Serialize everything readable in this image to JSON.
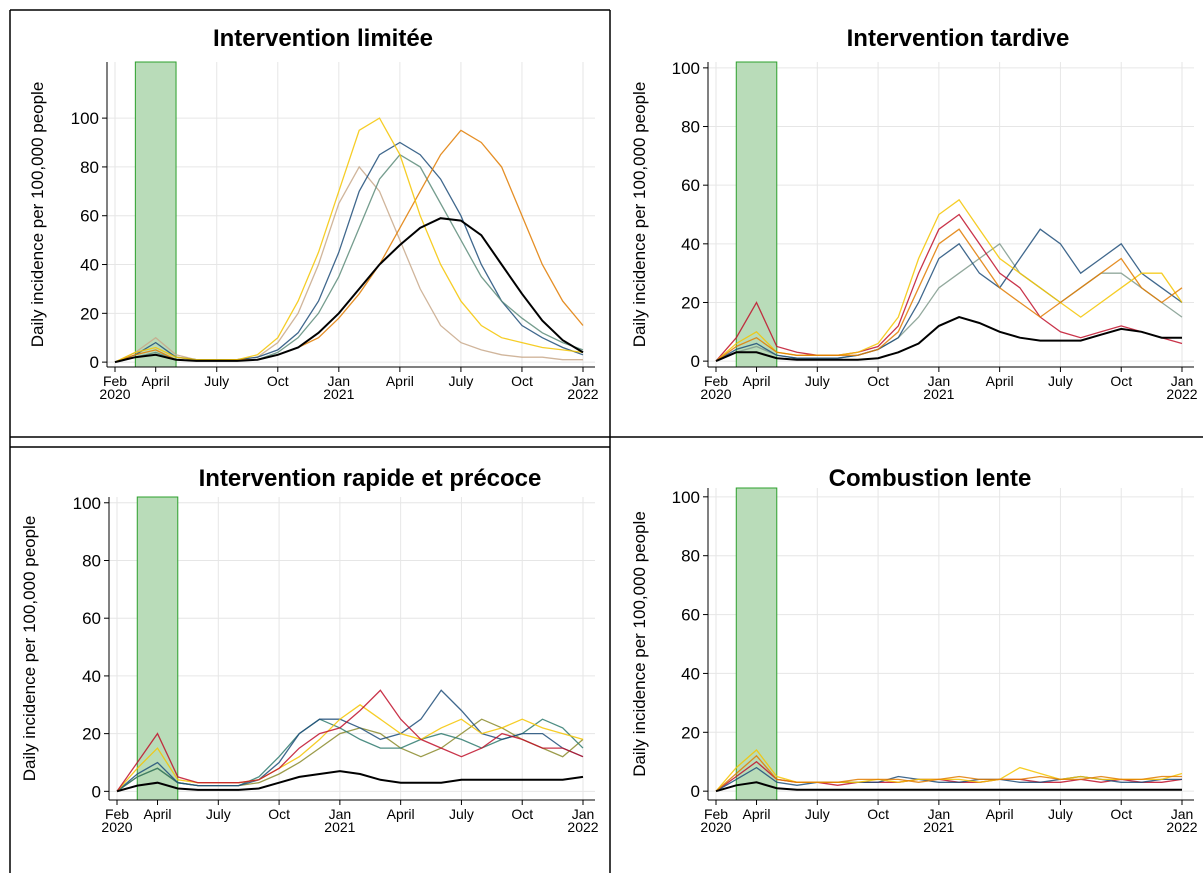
{
  "chart_data": [
    {
      "type": "line",
      "title": "Intervention limitée",
      "y_label": "Daily incidence per 100,000 people",
      "x": [
        "2020-02",
        "2020-03",
        "2020-04",
        "2020-05",
        "2020-06",
        "2020-07",
        "2020-08",
        "2020-09",
        "2020-10",
        "2020-11",
        "2020-12",
        "2021-01",
        "2021-02",
        "2021-03",
        "2021-04",
        "2021-05",
        "2021-06",
        "2021-07",
        "2021-08",
        "2021-09",
        "2021-10",
        "2021-11",
        "2021-12",
        "2022-01"
      ],
      "xlim": [
        "2020-02",
        "2022-01"
      ],
      "xticks": [
        {
          "value": "2020-02",
          "label": "Feb\n2020"
        },
        {
          "value": "2020-04",
          "label": "April"
        },
        {
          "value": "2020-07",
          "label": "July"
        },
        {
          "value": "2020-10",
          "label": "Oct"
        },
        {
          "value": "2021-01",
          "label": "Jan\n2021"
        },
        {
          "value": "2021-04",
          "label": "April"
        },
        {
          "value": "2021-07",
          "label": "July"
        },
        {
          "value": "2021-10",
          "label": "Oct"
        },
        {
          "value": "2022-01",
          "label": "Jan\n2022"
        }
      ],
      "ylim": [
        -2,
        123
      ],
      "yticks": [
        0,
        20,
        40,
        60,
        80,
        100
      ],
      "grid": true,
      "highlight_x": [
        "2020-03",
        "2020-05"
      ],
      "highlight_color": "#b9dcb9",
      "series": [
        {
          "color": "#c8a88a",
          "values": [
            0,
            4,
            10,
            3,
            1,
            1,
            1,
            2,
            8,
            20,
            40,
            65,
            80,
            70,
            50,
            30,
            15,
            8,
            5,
            3,
            2,
            2,
            1,
            1
          ]
        },
        {
          "color": "#1f4e79",
          "values": [
            0,
            3,
            8,
            2,
            1,
            1,
            1,
            2,
            5,
            12,
            25,
            45,
            70,
            85,
            90,
            85,
            75,
            60,
            40,
            25,
            15,
            10,
            6,
            3
          ]
        },
        {
          "color": "#5d8c7a",
          "values": [
            0,
            2,
            4,
            1,
            0.5,
            0.5,
            1,
            1,
            4,
            10,
            20,
            35,
            55,
            75,
            85,
            80,
            65,
            50,
            35,
            25,
            18,
            12,
            8,
            5
          ]
        },
        {
          "color": "#e07b00",
          "values": [
            0,
            3,
            5,
            1,
            0.5,
            0.5,
            1,
            1,
            3,
            6,
            10,
            18,
            28,
            40,
            55,
            70,
            85,
            95,
            90,
            80,
            60,
            40,
            25,
            15
          ]
        },
        {
          "color": "#f5c400",
          "values": [
            0,
            4,
            6,
            2,
            1,
            1,
            1,
            3,
            10,
            25,
            45,
            70,
            95,
            100,
            85,
            60,
            40,
            25,
            15,
            10,
            8,
            6,
            5,
            4
          ]
        },
        {
          "color": "#000000",
          "values": [
            0,
            2,
            3,
            1,
            0.5,
            0.5,
            0.5,
            1,
            3,
            6,
            12,
            20,
            30,
            40,
            48,
            55,
            59,
            58,
            52,
            40,
            28,
            17,
            9,
            4
          ]
        }
      ]
    },
    {
      "type": "line",
      "title": "Intervention tardive",
      "y_label": "Daily incidence per 100,000 people",
      "x": [
        "2020-02",
        "2020-03",
        "2020-04",
        "2020-05",
        "2020-06",
        "2020-07",
        "2020-08",
        "2020-09",
        "2020-10",
        "2020-11",
        "2020-12",
        "2021-01",
        "2021-02",
        "2021-03",
        "2021-04",
        "2021-05",
        "2021-06",
        "2021-07",
        "2021-08",
        "2021-09",
        "2021-10",
        "2021-11",
        "2021-12",
        "2022-01"
      ],
      "xlim": [
        "2020-02",
        "2022-01"
      ],
      "xticks": [
        {
          "value": "2020-02",
          "label": "Feb\n2020"
        },
        {
          "value": "2020-04",
          "label": "April"
        },
        {
          "value": "2020-07",
          "label": "July"
        },
        {
          "value": "2020-10",
          "label": "Oct"
        },
        {
          "value": "2021-01",
          "label": "Jan\n2021"
        },
        {
          "value": "2021-04",
          "label": "April"
        },
        {
          "value": "2021-07",
          "label": "July"
        },
        {
          "value": "2021-10",
          "label": "Oct"
        },
        {
          "value": "2022-01",
          "label": "Jan\n2022"
        }
      ],
      "ylim": [
        -2,
        102
      ],
      "yticks": [
        0,
        20,
        40,
        60,
        80,
        100
      ],
      "grid": true,
      "highlight_x": [
        "2020-03",
        "2020-05"
      ],
      "highlight_color": "#b9dcb9",
      "series": [
        {
          "color": "#7f9a8c",
          "values": [
            0,
            3,
            5,
            2,
            1,
            1,
            1,
            2,
            4,
            8,
            15,
            25,
            30,
            35,
            40,
            30,
            25,
            20,
            25,
            30,
            30,
            25,
            20,
            15
          ]
        },
        {
          "color": "#1f4e79",
          "values": [
            0,
            4,
            6,
            2,
            1,
            1,
            1,
            2,
            4,
            8,
            20,
            35,
            40,
            30,
            25,
            35,
            45,
            40,
            30,
            35,
            40,
            30,
            25,
            20
          ]
        },
        {
          "color": "#c0102a",
          "values": [
            0,
            8,
            20,
            5,
            3,
            2,
            2,
            3,
            5,
            12,
            30,
            45,
            50,
            40,
            30,
            25,
            15,
            10,
            8,
            10,
            12,
            10,
            8,
            6
          ]
        },
        {
          "color": "#f5c400",
          "values": [
            0,
            6,
            10,
            3,
            2,
            2,
            2,
            3,
            6,
            15,
            35,
            50,
            55,
            45,
            35,
            30,
            25,
            20,
            15,
            20,
            25,
            30,
            30,
            20
          ]
        },
        {
          "color": "#e07b00",
          "values": [
            0,
            5,
            8,
            3,
            2,
            2,
            2,
            2,
            4,
            10,
            25,
            40,
            45,
            35,
            25,
            20,
            15,
            20,
            25,
            30,
            35,
            25,
            20,
            25
          ]
        },
        {
          "color": "#000000",
          "values": [
            0,
            3,
            3,
            1,
            0.5,
            0.5,
            0.5,
            0.5,
            1,
            3,
            6,
            12,
            15,
            13,
            10,
            8,
            7,
            7,
            7,
            9,
            11,
            10,
            8,
            8
          ]
        }
      ]
    },
    {
      "type": "line",
      "title": "Intervention rapide et précoce",
      "y_label": "Daily incidence per 100,000 people",
      "x": [
        "2020-02",
        "2020-03",
        "2020-04",
        "2020-05",
        "2020-06",
        "2020-07",
        "2020-08",
        "2020-09",
        "2020-10",
        "2020-11",
        "2020-12",
        "2021-01",
        "2021-02",
        "2021-03",
        "2021-04",
        "2021-05",
        "2021-06",
        "2021-07",
        "2021-08",
        "2021-09",
        "2021-10",
        "2021-11",
        "2021-12",
        "2022-01"
      ],
      "xlim": [
        "2020-02",
        "2022-01"
      ],
      "xticks": [
        {
          "value": "2020-02",
          "label": "Feb\n2020"
        },
        {
          "value": "2020-04",
          "label": "April"
        },
        {
          "value": "2020-07",
          "label": "July"
        },
        {
          "value": "2020-10",
          "label": "Oct"
        },
        {
          "value": "2021-01",
          "label": "Jan\n2021"
        },
        {
          "value": "2021-04",
          "label": "April"
        },
        {
          "value": "2021-07",
          "label": "July"
        },
        {
          "value": "2021-10",
          "label": "Oct"
        },
        {
          "value": "2022-01",
          "label": "Jan\n2022"
        }
      ],
      "ylim": [
        -3,
        102
      ],
      "yticks": [
        0,
        20,
        40,
        60,
        80,
        100
      ],
      "grid": true,
      "highlight_x": [
        "2020-03",
        "2020-05"
      ],
      "highlight_color": "#b9dcb9",
      "series": [
        {
          "color": "#8a8a2a",
          "values": [
            0,
            5,
            8,
            3,
            2,
            2,
            2,
            3,
            6,
            10,
            15,
            20,
            22,
            20,
            15,
            12,
            15,
            20,
            25,
            22,
            18,
            15,
            12,
            18
          ]
        },
        {
          "color": "#2f7a6e",
          "values": [
            0,
            5,
            8,
            3,
            2,
            2,
            2,
            5,
            12,
            20,
            25,
            22,
            18,
            15,
            15,
            18,
            20,
            18,
            15,
            18,
            20,
            25,
            22,
            15
          ]
        },
        {
          "color": "#1f4e79",
          "values": [
            0,
            6,
            10,
            3,
            2,
            2,
            2,
            4,
            10,
            20,
            25,
            25,
            22,
            18,
            20,
            25,
            35,
            28,
            20,
            18,
            20,
            20,
            15,
            12
          ]
        },
        {
          "color": "#f5c400",
          "values": [
            0,
            8,
            15,
            4,
            3,
            3,
            3,
            4,
            8,
            12,
            18,
            25,
            30,
            25,
            20,
            18,
            22,
            25,
            20,
            22,
            25,
            22,
            20,
            18
          ]
        },
        {
          "color": "#c0102a",
          "values": [
            0,
            10,
            20,
            5,
            3,
            3,
            3,
            4,
            8,
            15,
            20,
            22,
            28,
            35,
            25,
            18,
            15,
            12,
            15,
            20,
            18,
            15,
            15,
            12
          ]
        },
        {
          "color": "#000000",
          "values": [
            0,
            2,
            3,
            1,
            0.5,
            0.5,
            0.5,
            1,
            3,
            5,
            6,
            7,
            6,
            4,
            3,
            3,
            3,
            4,
            4,
            4,
            4,
            4,
            4,
            5
          ]
        }
      ]
    },
    {
      "type": "line",
      "title": "Combustion lente",
      "y_label": "Daily incidence per 100,000 people",
      "x": [
        "2020-02",
        "2020-03",
        "2020-04",
        "2020-05",
        "2020-06",
        "2020-07",
        "2020-08",
        "2020-09",
        "2020-10",
        "2020-11",
        "2020-12",
        "2021-01",
        "2021-02",
        "2021-03",
        "2021-04",
        "2021-05",
        "2021-06",
        "2021-07",
        "2021-08",
        "2021-09",
        "2021-10",
        "2021-11",
        "2021-12",
        "2022-01"
      ],
      "xlim": [
        "2020-02",
        "2022-01"
      ],
      "xticks": [
        {
          "value": "2020-02",
          "label": "Feb\n2020"
        },
        {
          "value": "2020-04",
          "label": "April"
        },
        {
          "value": "2020-07",
          "label": "July"
        },
        {
          "value": "2020-10",
          "label": "Oct"
        },
        {
          "value": "2021-01",
          "label": "Jan\n2021"
        },
        {
          "value": "2021-04",
          "label": "April"
        },
        {
          "value": "2021-07",
          "label": "July"
        },
        {
          "value": "2021-10",
          "label": "Oct"
        },
        {
          "value": "2022-01",
          "label": "Jan\n2022"
        }
      ],
      "ylim": [
        -3,
        103
      ],
      "yticks": [
        0,
        20,
        40,
        60,
        80,
        100
      ],
      "grid": true,
      "highlight_x": [
        "2020-03",
        "2020-05"
      ],
      "highlight_color": "#b9dcb9",
      "series": [
        {
          "color": "#c0102a",
          "values": [
            0,
            5,
            10,
            4,
            3,
            3,
            2,
            3,
            3,
            3,
            4,
            4,
            3,
            3,
            4,
            4,
            3,
            3,
            4,
            3,
            4,
            3,
            3,
            4
          ]
        },
        {
          "color": "#1f4e79",
          "values": [
            0,
            4,
            8,
            3,
            2,
            3,
            3,
            3,
            3,
            5,
            4,
            3,
            3,
            4,
            4,
            3,
            3,
            4,
            5,
            4,
            3,
            3,
            4,
            4
          ]
        },
        {
          "color": "#f5c400",
          "values": [
            0,
            8,
            14,
            5,
            3,
            3,
            3,
            3,
            4,
            3,
            4,
            4,
            4,
            3,
            4,
            8,
            6,
            4,
            5,
            4,
            4,
            4,
            4,
            6
          ]
        },
        {
          "color": "#e07b00",
          "values": [
            0,
            6,
            12,
            4,
            3,
            3,
            3,
            4,
            4,
            4,
            3,
            4,
            5,
            4,
            4,
            4,
            5,
            4,
            4,
            5,
            4,
            4,
            5,
            5
          ]
        },
        {
          "color": "#000000",
          "values": [
            0,
            2,
            3,
            1,
            0.5,
            0.5,
            0.5,
            0.5,
            0.5,
            0.5,
            0.5,
            0.5,
            0.5,
            0.5,
            0.5,
            0.5,
            0.5,
            0.5,
            0.5,
            0.5,
            0.5,
            0.5,
            0.5,
            0.5
          ]
        }
      ]
    }
  ]
}
